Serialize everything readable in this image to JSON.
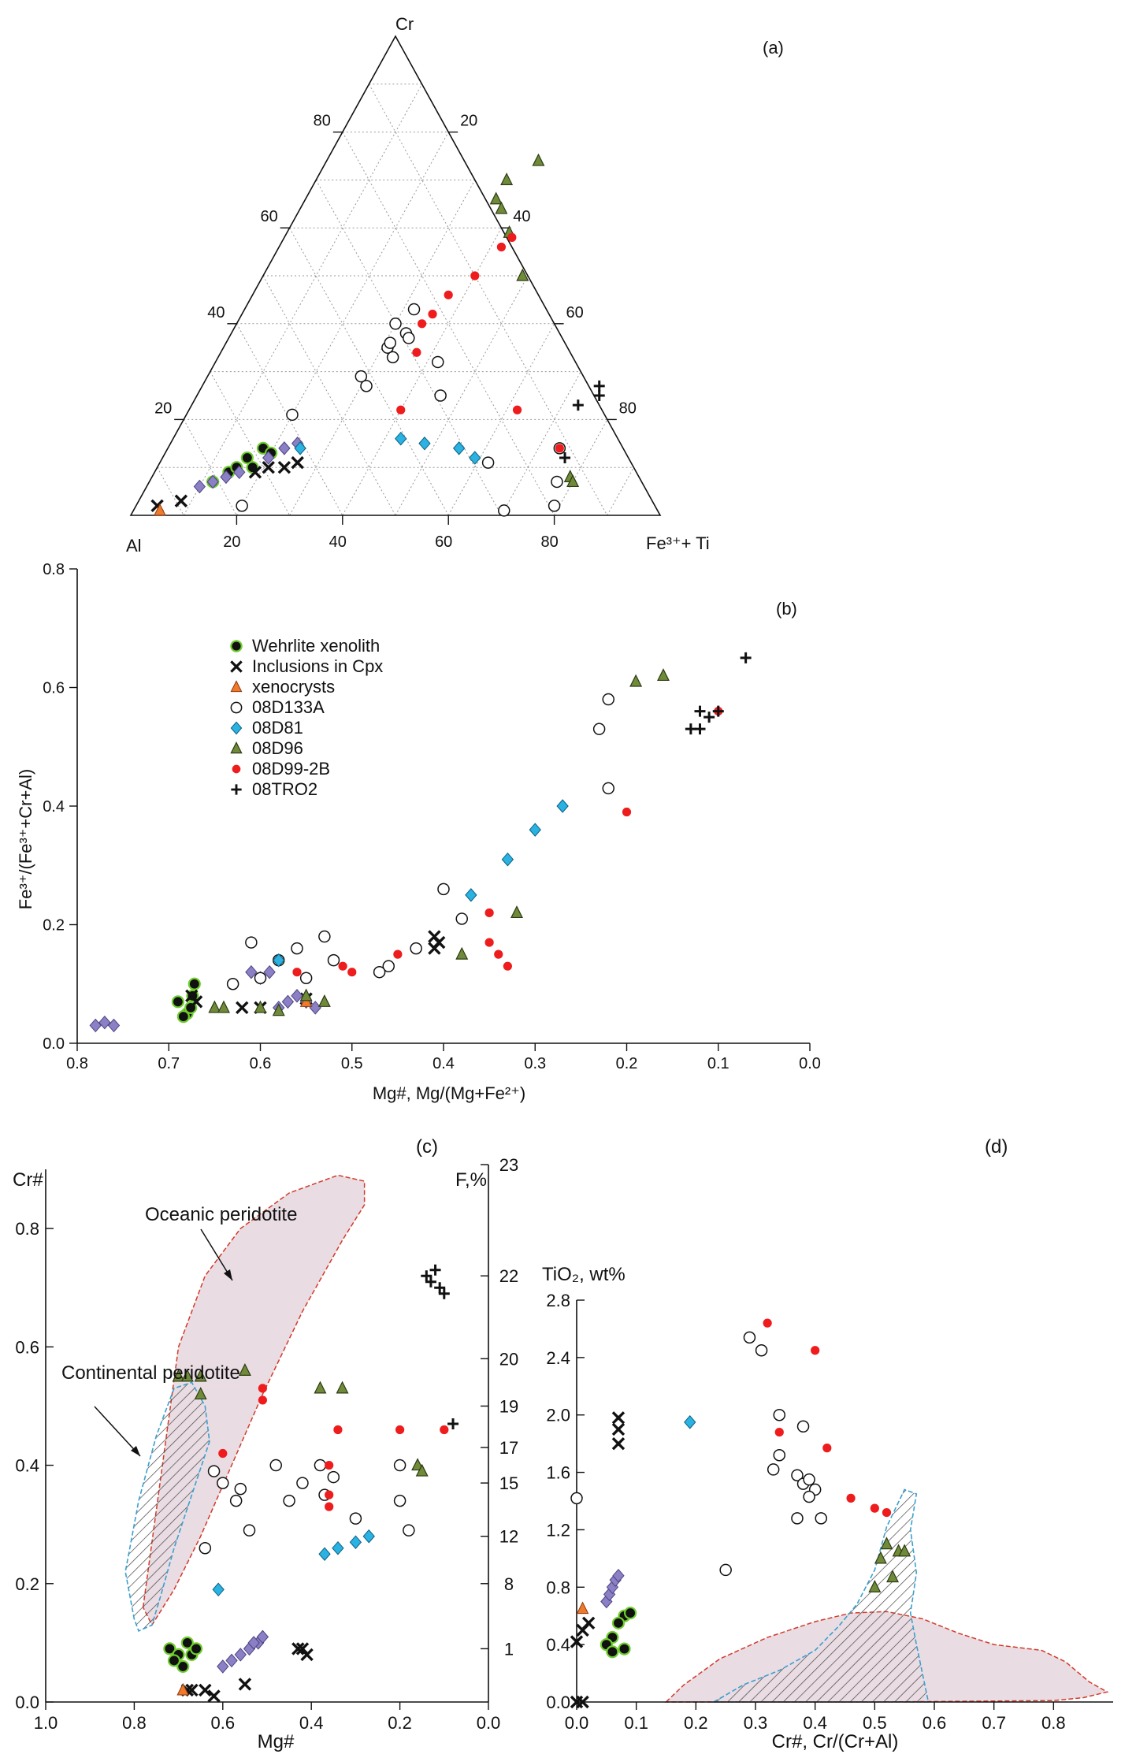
{
  "colors": {
    "wehrlite": "#111111",
    "wehrlite_ring": "#6fce2e",
    "diamond_purple": "#8b7fc6",
    "xenocryst": "#f07a2a",
    "d81": "#2ab2e2",
    "d96": "#6f8b3a",
    "d99": "#ee1c1c",
    "oceanic_fill": "#e9dce3",
    "oceanic_edge": "#d33a2a",
    "continental_edge": "#3aa0d0"
  },
  "legend": {
    "entries": [
      {
        "key": "wehrlite",
        "label": "Wehrlite xenolith"
      },
      {
        "key": "cpx",
        "label": "Inclusions in Cpx"
      },
      {
        "key": "xeno",
        "label": "xenocrysts"
      },
      {
        "key": "d133a",
        "label": "08D133A"
      },
      {
        "key": "d81",
        "label": "08D81"
      },
      {
        "key": "d96",
        "label": "08D96"
      },
      {
        "key": "d99",
        "label": "08D99-2B"
      },
      {
        "key": "tro2",
        "label": "08TRO2"
      }
    ]
  },
  "chart_data": [
    {
      "panel": "(a)",
      "type": "scatter",
      "subtype": "ternary",
      "apex_labels": {
        "top": "Cr",
        "left": "Al",
        "right": "Fe³⁺+ Ti"
      },
      "tick_labels": [
        "20",
        "40",
        "60",
        "80"
      ],
      "tick_values": [
        20,
        40,
        60,
        80
      ],
      "series": {
        "wehrlite": [
          [
            12,
            7
          ],
          [
            14,
            9
          ],
          [
            16,
            12
          ],
          [
            18,
            14
          ],
          [
            20,
            13
          ],
          [
            18,
            10
          ],
          [
            15,
            10
          ]
        ],
        "cpx": [
          [
            19,
            9
          ],
          [
            21,
            10
          ],
          [
            24,
            10
          ],
          [
            26,
            11
          ],
          [
            4,
            2
          ],
          [
            8,
            3
          ]
        ],
        "diamond_purple": [
          [
            10,
            6
          ],
          [
            12,
            7
          ],
          [
            14,
            8
          ],
          [
            16,
            9
          ],
          [
            20,
            12
          ],
          [
            22,
            14
          ],
          [
            24,
            15
          ]
        ],
        "xeno": [
          [
            5,
            1
          ]
        ],
        "d133a": [
          [
            33,
            38
          ],
          [
            30,
            40
          ],
          [
            32,
            43
          ],
          [
            31,
            35
          ],
          [
            29,
            29
          ],
          [
            34,
            37
          ],
          [
            42,
            32
          ],
          [
            46,
            25
          ],
          [
            31,
            36
          ],
          [
            20,
            21
          ],
          [
            20,
            2
          ],
          [
            62,
            11
          ],
          [
            74,
            14
          ],
          [
            77,
            7
          ],
          [
            70,
            1
          ],
          [
            79,
            2
          ],
          [
            33,
            33
          ],
          [
            31,
            27
          ]
        ],
        "d81": [
          [
            25,
            14
          ],
          [
            43,
            16
          ],
          [
            48,
            15
          ],
          [
            55,
            14
          ],
          [
            59,
            12
          ]
        ],
        "d96": [
          [
            36,
            66
          ],
          [
            38,
            64
          ],
          [
            42,
            59
          ],
          [
            49,
            50
          ],
          [
            36,
            70
          ],
          [
            40,
            74
          ],
          [
            79,
            8
          ],
          [
            80,
            7
          ]
        ],
        "d99": [
          [
            42,
            56
          ],
          [
            40,
            50
          ],
          [
            37,
            46
          ],
          [
            36,
            42
          ],
          [
            35,
            40
          ],
          [
            37,
            34
          ],
          [
            40,
            22
          ],
          [
            62,
            22
          ],
          [
            74,
            14
          ],
          [
            43,
            58
          ]
        ],
        "tro2": [
          [
            75,
            27
          ],
          [
            76,
            25
          ],
          [
            73,
            23
          ],
          [
            76,
            12
          ]
        ]
      }
    },
    {
      "panel": "(b)",
      "type": "scatter",
      "xlabel": "Mg#, Mg/(Mg+Fe²⁺)",
      "ylabel": "Fe³⁺/(Fe³⁺+Cr+Al)",
      "xlim": [
        0.8,
        0.0
      ],
      "ylim": [
        0.0,
        0.8
      ],
      "x_ticks": [
        "0.8",
        "0.7",
        "0.6",
        "0.5",
        "0.4",
        "0.3",
        "0.2",
        "0.1",
        "0.0"
      ],
      "y_ticks": [
        "0.0",
        "0.2",
        "0.4",
        "0.6",
        "0.8"
      ],
      "series": {
        "wehrlite": [
          [
            0.69,
            0.07
          ],
          [
            0.68,
            0.05
          ],
          [
            0.676,
            0.06
          ],
          [
            0.674,
            0.08
          ],
          [
            0.672,
            0.1
          ],
          [
            0.684,
            0.045
          ]
        ],
        "cpx": [
          [
            0.675,
            0.08
          ],
          [
            0.67,
            0.07
          ],
          [
            0.62,
            0.06
          ],
          [
            0.6,
            0.06
          ],
          [
            0.55,
            0.075
          ],
          [
            0.41,
            0.18
          ],
          [
            0.41,
            0.16
          ],
          [
            0.405,
            0.17
          ]
        ],
        "diamond_purple": [
          [
            0.78,
            0.03
          ],
          [
            0.77,
            0.035
          ],
          [
            0.76,
            0.03
          ],
          [
            0.61,
            0.12
          ],
          [
            0.6,
            0.11
          ],
          [
            0.59,
            0.12
          ],
          [
            0.58,
            0.06
          ],
          [
            0.57,
            0.07
          ],
          [
            0.56,
            0.08
          ],
          [
            0.55,
            0.07
          ],
          [
            0.54,
            0.06
          ]
        ],
        "xeno": [
          [
            0.55,
            0.07
          ]
        ],
        "d133a": [
          [
            0.61,
            0.17
          ],
          [
            0.58,
            0.14
          ],
          [
            0.56,
            0.16
          ],
          [
            0.53,
            0.18
          ],
          [
            0.52,
            0.14
          ],
          [
            0.46,
            0.13
          ],
          [
            0.43,
            0.16
          ],
          [
            0.4,
            0.26
          ],
          [
            0.38,
            0.21
          ],
          [
            0.47,
            0.12
          ],
          [
            0.63,
            0.1
          ],
          [
            0.6,
            0.11
          ],
          [
            0.55,
            0.11
          ],
          [
            0.22,
            0.58
          ],
          [
            0.23,
            0.53
          ],
          [
            0.22,
            0.43
          ]
        ],
        "d81": [
          [
            0.58,
            0.14
          ],
          [
            0.37,
            0.25
          ],
          [
            0.33,
            0.31
          ],
          [
            0.3,
            0.36
          ],
          [
            0.27,
            0.4
          ]
        ],
        "d96": [
          [
            0.65,
            0.06
          ],
          [
            0.64,
            0.06
          ],
          [
            0.6,
            0.06
          ],
          [
            0.58,
            0.055
          ],
          [
            0.55,
            0.08
          ],
          [
            0.53,
            0.07
          ],
          [
            0.38,
            0.15
          ],
          [
            0.32,
            0.22
          ],
          [
            0.19,
            0.61
          ],
          [
            0.16,
            0.62
          ]
        ],
        "d99": [
          [
            0.56,
            0.12
          ],
          [
            0.5,
            0.12
          ],
          [
            0.51,
            0.13
          ],
          [
            0.45,
            0.15
          ],
          [
            0.35,
            0.22
          ],
          [
            0.35,
            0.17
          ],
          [
            0.34,
            0.15
          ],
          [
            0.33,
            0.13
          ],
          [
            0.2,
            0.39
          ],
          [
            0.1,
            0.56
          ]
        ],
        "tro2": [
          [
            0.13,
            0.53
          ],
          [
            0.12,
            0.53
          ],
          [
            0.12,
            0.56
          ],
          [
            0.11,
            0.55
          ],
          [
            0.1,
            0.56
          ],
          [
            0.07,
            0.65
          ]
        ]
      },
      "tick_text_note": "pixels are computed in script"
    },
    {
      "panel": "(c)",
      "type": "scatter",
      "xlabel": "Mg#",
      "ylabel": "Cr#",
      "y2label": "F,%",
      "xlim": [
        1.0,
        0.0
      ],
      "ylim": [
        0.0,
        0.9
      ],
      "x_ticks": [
        "1.0",
        "0.8",
        "0.6",
        "0.4",
        "0.2",
        "0.0"
      ],
      "y_ticks": [
        "0.0",
        "0.2",
        "0.4",
        "0.6",
        "0.8"
      ],
      "y2_ticks": [
        "1",
        "8",
        "12",
        "15",
        "17",
        "19",
        "20",
        "22",
        "23"
      ],
      "annotations": {
        "oceanic": "Oceanic peridotite",
        "continental": "Continental peridotite"
      },
      "series": {
        "wehrlite": [
          [
            0.72,
            0.09
          ],
          [
            0.7,
            0.08
          ],
          [
            0.68,
            0.1
          ],
          [
            0.69,
            0.06
          ],
          [
            0.67,
            0.08
          ],
          [
            0.71,
            0.07
          ],
          [
            0.66,
            0.09
          ]
        ],
        "cpx": [
          [
            0.68,
            0.02
          ],
          [
            0.67,
            0.02
          ],
          [
            0.64,
            0.02
          ],
          [
            0.62,
            0.01
          ],
          [
            0.55,
            0.03
          ],
          [
            0.43,
            0.09
          ],
          [
            0.42,
            0.09
          ],
          [
            0.41,
            0.08
          ]
        ],
        "diamond_purple": [
          [
            0.6,
            0.06
          ],
          [
            0.58,
            0.07
          ],
          [
            0.56,
            0.08
          ],
          [
            0.54,
            0.09
          ],
          [
            0.52,
            0.1
          ],
          [
            0.51,
            0.11
          ],
          [
            0.53,
            0.1
          ]
        ],
        "xeno": [
          [
            0.69,
            0.02
          ]
        ],
        "d133a": [
          [
            0.64,
            0.26
          ],
          [
            0.62,
            0.39
          ],
          [
            0.6,
            0.37
          ],
          [
            0.57,
            0.34
          ],
          [
            0.56,
            0.36
          ],
          [
            0.54,
            0.29
          ],
          [
            0.48,
            0.4
          ],
          [
            0.45,
            0.34
          ],
          [
            0.42,
            0.37
          ],
          [
            0.38,
            0.4
          ],
          [
            0.37,
            0.35
          ],
          [
            0.35,
            0.38
          ],
          [
            0.3,
            0.31
          ],
          [
            0.2,
            0.4
          ],
          [
            0.2,
            0.34
          ],
          [
            0.18,
            0.29
          ]
        ],
        "d81": [
          [
            0.61,
            0.19
          ],
          [
            0.37,
            0.25
          ],
          [
            0.34,
            0.26
          ],
          [
            0.3,
            0.27
          ],
          [
            0.27,
            0.28
          ]
        ],
        "d96": [
          [
            0.7,
            0.55
          ],
          [
            0.68,
            0.55
          ],
          [
            0.65,
            0.55
          ],
          [
            0.65,
            0.52
          ],
          [
            0.55,
            0.56
          ],
          [
            0.38,
            0.53
          ],
          [
            0.33,
            0.53
          ],
          [
            0.16,
            0.4
          ],
          [
            0.15,
            0.39
          ]
        ],
        "d99": [
          [
            0.6,
            0.42
          ],
          [
            0.51,
            0.53
          ],
          [
            0.51,
            0.51
          ],
          [
            0.34,
            0.46
          ],
          [
            0.36,
            0.4
          ],
          [
            0.36,
            0.35
          ],
          [
            0.36,
            0.33
          ],
          [
            0.2,
            0.46
          ],
          [
            0.1,
            0.46
          ]
        ],
        "tro2": [
          [
            0.14,
            0.72
          ],
          [
            0.13,
            0.71
          ],
          [
            0.12,
            0.73
          ],
          [
            0.1,
            0.69
          ],
          [
            0.11,
            0.7
          ],
          [
            0.08,
            0.47
          ]
        ]
      }
    },
    {
      "panel": "(d)",
      "type": "scatter",
      "xlabel": "Cr#, Cr/(Cr+Al)",
      "ylabel": "TiO₂, wt%",
      "xlim": [
        0.0,
        0.9
      ],
      "ylim": [
        0.0,
        2.8
      ],
      "x_ticks": [
        "0.0",
        "0.1",
        "0.2",
        "0.3",
        "0.4",
        "0.5",
        "0.6",
        "0.7",
        "0.8"
      ],
      "y_ticks": [
        "0.0",
        "0.4",
        "0.8",
        "1.2",
        "1.6",
        "2.0",
        "2.4",
        "2.8"
      ],
      "series": {
        "wehrlite": [
          [
            0.08,
            0.6
          ],
          [
            0.09,
            0.62
          ],
          [
            0.07,
            0.55
          ],
          [
            0.06,
            0.45
          ],
          [
            0.05,
            0.4
          ],
          [
            0.06,
            0.35
          ],
          [
            0.08,
            0.37
          ]
        ],
        "cpx": [
          [
            0.0,
            0.0
          ],
          [
            0.01,
            0.0
          ],
          [
            0.0,
            0.42
          ],
          [
            0.01,
            0.5
          ],
          [
            0.02,
            0.55
          ],
          [
            0.07,
            1.8
          ],
          [
            0.07,
            1.9
          ],
          [
            0.07,
            1.98
          ]
        ],
        "diamond_purple": [
          [
            0.05,
            0.7
          ],
          [
            0.055,
            0.75
          ],
          [
            0.06,
            0.8
          ],
          [
            0.065,
            0.85
          ],
          [
            0.07,
            0.88
          ]
        ],
        "xeno": [
          [
            0.01,
            0.65
          ]
        ],
        "d133a": [
          [
            0.0,
            1.42
          ],
          [
            0.25,
            0.92
          ],
          [
            0.29,
            2.54
          ],
          [
            0.31,
            2.45
          ],
          [
            0.34,
            2.0
          ],
          [
            0.34,
            1.72
          ],
          [
            0.33,
            1.62
          ],
          [
            0.37,
            1.58
          ],
          [
            0.38,
            1.52
          ],
          [
            0.39,
            1.55
          ],
          [
            0.4,
            1.48
          ],
          [
            0.39,
            1.43
          ],
          [
            0.41,
            1.28
          ],
          [
            0.37,
            1.28
          ],
          [
            0.38,
            1.92
          ]
        ],
        "d81": [
          [
            0.19,
            1.95
          ]
        ],
        "d96": [
          [
            0.52,
            1.1
          ],
          [
            0.54,
            1.05
          ],
          [
            0.55,
            1.05
          ],
          [
            0.51,
            1.0
          ],
          [
            0.53,
            0.87
          ],
          [
            0.5,
            0.8
          ]
        ],
        "d99": [
          [
            0.32,
            2.64
          ],
          [
            0.4,
            2.45
          ],
          [
            0.34,
            1.88
          ],
          [
            0.42,
            1.77
          ],
          [
            0.46,
            1.42
          ],
          [
            0.5,
            1.35
          ],
          [
            0.52,
            1.32
          ]
        ],
        "tro2": []
      }
    }
  ]
}
